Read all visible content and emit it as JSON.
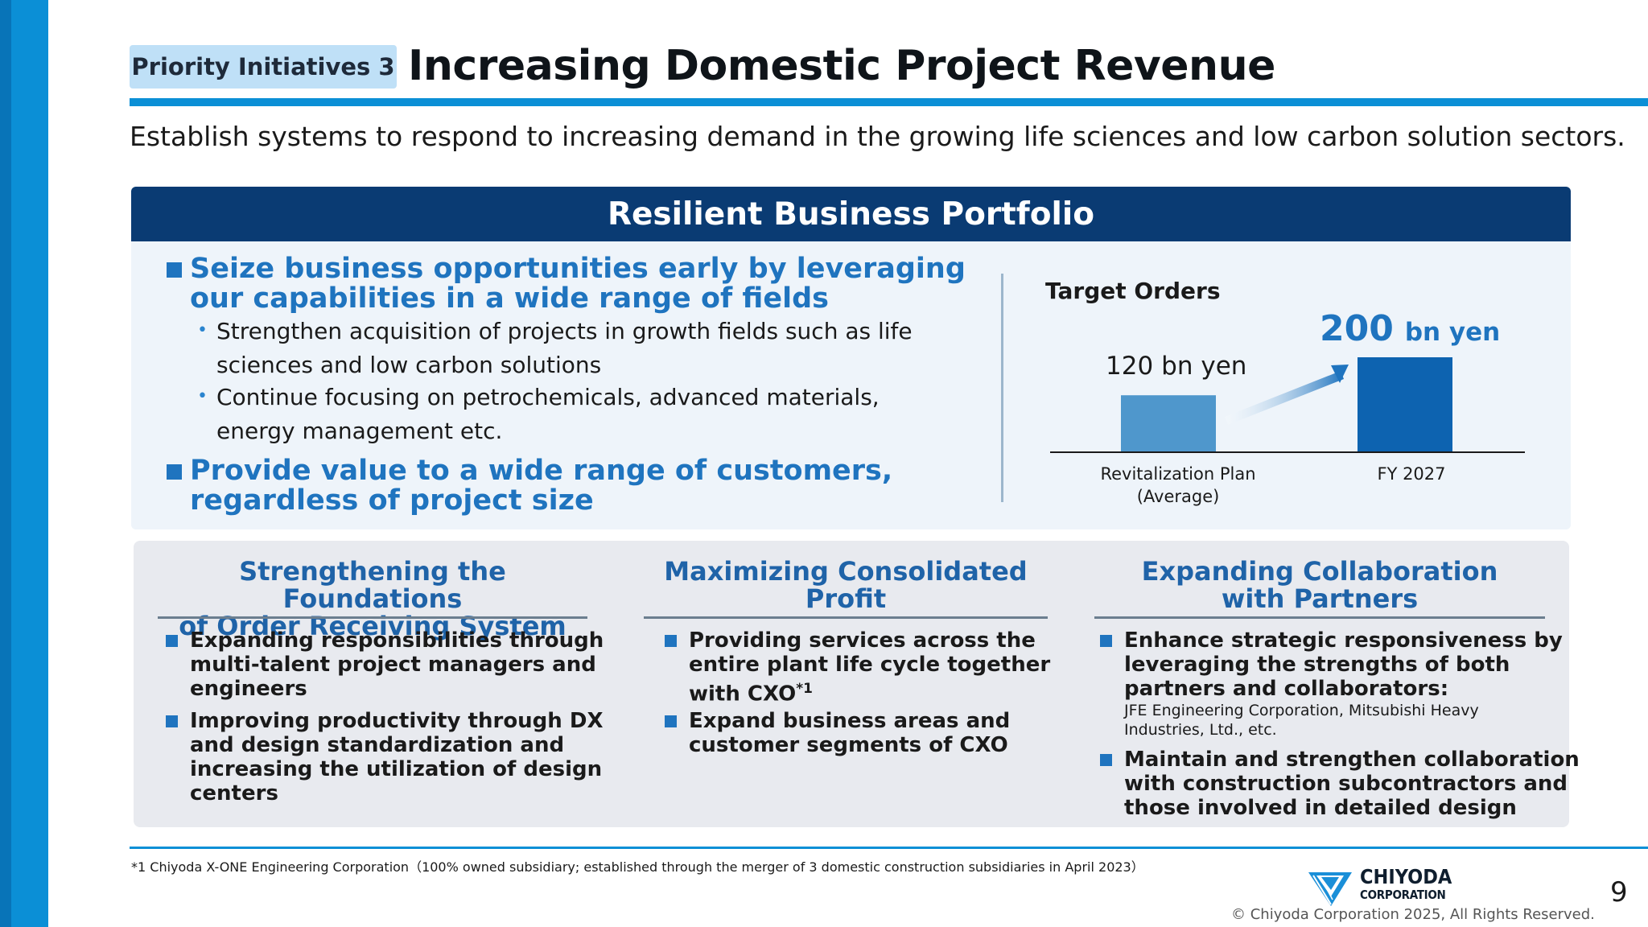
{
  "header": {
    "tag": "Priority Initiatives 3",
    "title": "Increasing Domestic Project Revenue",
    "subtitle": "Establish systems to respond to increasing demand in the growing life sciences and low carbon solution sectors."
  },
  "portfolio": {
    "heading": "Resilient Business Portfolio",
    "bullets": [
      {
        "line1": "Seize business opportunities early by leveraging",
        "line2": "our capabilities in a wide range of fields",
        "subs": [
          {
            "line1": "Strengthen acquisition of projects in growth fields such as life",
            "line2": "sciences and low carbon solutions"
          },
          {
            "line1": "Continue focusing on petrochemicals, advanced materials,",
            "line2": "energy management etc."
          }
        ]
      },
      {
        "line1": "Provide value to a wide range of customers,",
        "line2": "regardless of project size"
      }
    ]
  },
  "chart_data": {
    "type": "bar",
    "title": "Target Orders",
    "categories": [
      "Revitalization Plan (Average)",
      "FY 2027"
    ],
    "category_lines": [
      [
        "Revitalization Plan",
        "(Average)"
      ],
      [
        "FY 2027"
      ]
    ],
    "values": [
      120,
      200
    ],
    "data_labels": [
      {
        "number": "120",
        "unit": "bn yen"
      },
      {
        "number": "200",
        "unit": "bn yen"
      }
    ],
    "colors": [
      "#4f97cc",
      "#0d63b0"
    ],
    "ylim": [
      0,
      210
    ]
  },
  "columns": [
    {
      "head1": "Strengthening the Foundations",
      "head2": "of Order Receiving System",
      "items": [
        [
          "Expanding responsibilities through",
          "multi-talent project managers and",
          "engineers"
        ],
        [
          "Improving productivity through DX",
          "and design standardization and",
          "increasing the utilization of design",
          "centers"
        ]
      ]
    },
    {
      "head1": "Maximizing Consolidated",
      "head2": "Profit",
      "items": [
        [
          "Providing services across the",
          "entire plant life cycle together",
          "with CXO"
        ],
        [
          "Expand business areas and",
          "customer segments of CXO"
        ]
      ],
      "superscript": "*1"
    },
    {
      "head1": "Expanding Collaboration",
      "head2": "with Partners",
      "items": [
        [
          "Enhance strategic responsiveness by",
          "leveraging the strengths of both",
          "partners and collaborators:"
        ],
        [
          "Maintain and strengthen collaboration",
          "with construction subcontractors and",
          "those involved in detailed design"
        ]
      ],
      "note1": "JFE Engineering Corporation, Mitsubishi Heavy",
      "note2": "Industries, Ltd., etc."
    }
  ],
  "footer": {
    "footnote": "*1 Chiyoda X-ONE Engineering Corporation（100% owned subsidiary; established through the merger of 3 domestic construction subsidiaries in April 2023）",
    "logo_line1": "CHIYODA",
    "logo_line2": "CORPORATION",
    "copyright": "© Chiyoda Corporation 2025, All Rights Reserved.",
    "page": "9"
  },
  "colors": {
    "accent_blue": "#0b8fd6",
    "navy": "#0a3b73",
    "bullet_blue": "#1f74bf"
  }
}
